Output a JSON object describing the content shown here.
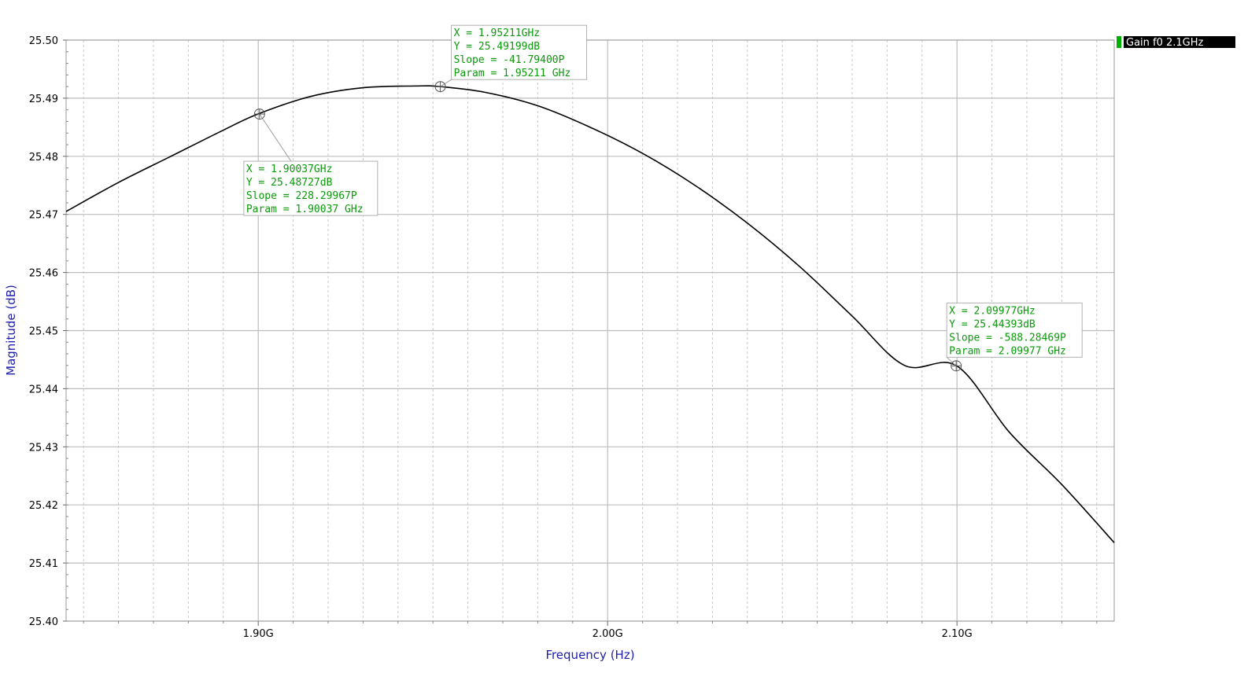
{
  "chart_data": {
    "type": "line",
    "xlabel": "Frequency (Hz)",
    "ylabel": "Magnitude (dB)",
    "xlim": [
      1.845,
      2.145
    ],
    "ylim": [
      25.4,
      25.5
    ],
    "x_ticks": [
      {
        "value": 1.9,
        "label": "1.90G"
      },
      {
        "value": 2.0,
        "label": "2.00G"
      },
      {
        "value": 2.1,
        "label": "2.10G"
      }
    ],
    "y_ticks": [
      {
        "value": 25.5,
        "label": "25.50"
      },
      {
        "value": 25.49,
        "label": "25.49"
      },
      {
        "value": 25.48,
        "label": "25.48"
      },
      {
        "value": 25.47,
        "label": "25.47"
      },
      {
        "value": 25.46,
        "label": "25.46"
      },
      {
        "value": 25.45,
        "label": "25.45"
      },
      {
        "value": 25.44,
        "label": "25.44"
      },
      {
        "value": 25.43,
        "label": "25.43"
      },
      {
        "value": 25.42,
        "label": "25.42"
      },
      {
        "value": 25.41,
        "label": "25.41"
      },
      {
        "value": 25.4,
        "label": "25.40"
      }
    ],
    "grid": true,
    "legend_position": "top-right",
    "series": [
      {
        "name": "Gain f0 2.1GHz",
        "color": "#000000",
        "legend_color": "#00b000",
        "x": [
          1.845,
          1.86,
          1.875,
          1.89,
          1.9,
          1.915,
          1.93,
          1.945,
          1.952,
          1.965,
          1.98,
          1.995,
          2.01,
          2.025,
          2.04,
          2.055,
          2.07,
          2.085,
          2.1,
          2.115,
          2.13,
          2.145
        ],
        "y": [
          25.4705,
          25.4755,
          25.48,
          25.4845,
          25.4873,
          25.4903,
          25.4918,
          25.4921,
          25.492,
          25.491,
          25.4887,
          25.485,
          25.4805,
          25.475,
          25.4685,
          25.461,
          25.4525,
          25.444,
          25.4439,
          25.4325,
          25.4235,
          25.4135
        ]
      }
    ],
    "markers": [
      {
        "x": 1.95211,
        "y": 25.49199,
        "lines": [
          "X = 1.95211GHz",
          "Y = 25.49199dB",
          "Slope = -41.79400P",
          "Param = 1.95211 GHz"
        ]
      },
      {
        "x": 1.90037,
        "y": 25.48727,
        "lines": [
          "X = 1.90037GHz",
          "Y = 25.48727dB",
          "Slope = 228.29967P",
          "Param = 1.90037 GHz"
        ]
      },
      {
        "x": 2.09977,
        "y": 25.44393,
        "lines": [
          "X = 2.09977GHz",
          "Y = 25.44393dB",
          "Slope = -588.28469P",
          "Param = 2.09977 GHz"
        ]
      }
    ],
    "colors": {
      "grid_major": "#bdbdbd",
      "grid_minor": "#c8c8c8",
      "marker_text": "#0a9a0a",
      "axis_title": "#1d1dae"
    }
  }
}
